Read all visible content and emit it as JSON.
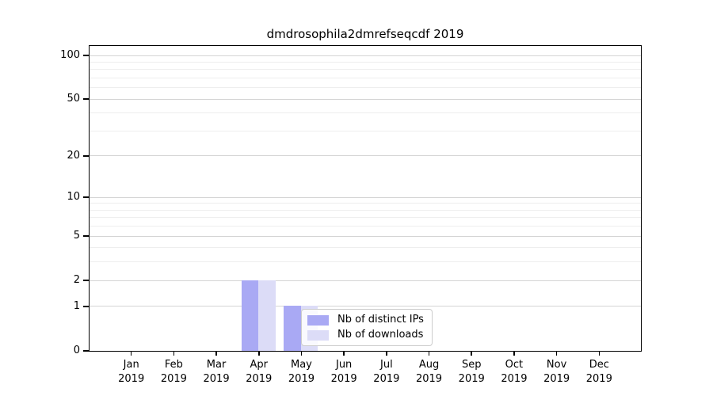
{
  "title": "dmdrosophila2dmrefseqcdf 2019",
  "chart_data": {
    "type": "bar",
    "title": "dmdrosophila2dmrefseqcdf 2019",
    "scale": "log1p",
    "grid": true,
    "categories": [
      "Jan",
      "Feb",
      "Mar",
      "Apr",
      "May",
      "Jun",
      "Jul",
      "Aug",
      "Sep",
      "Oct",
      "Nov",
      "Dec"
    ],
    "year_label": "2019",
    "series": [
      {
        "name": "Nb of distinct IPs",
        "color": "#a9a9f4",
        "values": [
          0,
          0,
          0,
          2,
          1,
          0,
          0,
          0,
          0,
          0,
          0,
          0
        ]
      },
      {
        "name": "Nb of downloads",
        "color": "#dcdcf7",
        "values": [
          0,
          0,
          0,
          2,
          1,
          0,
          0,
          0,
          0,
          0,
          0,
          0
        ]
      }
    ],
    "y_ticks": [
      0,
      1,
      2,
      5,
      10,
      20,
      50,
      100
    ],
    "y_minor_gridlines": [
      3,
      4,
      6,
      7,
      8,
      9,
      30,
      40,
      60,
      70,
      80,
      90
    ],
    "ylim": [
      0,
      117
    ],
    "xlabel": "",
    "ylabel": "",
    "legend_position": "bottom-center"
  },
  "colors": {
    "major_grid": "#d4d4d4",
    "minor_grid": "#eeeeee",
    "axis": "#000000",
    "legend_border": "#cccccc",
    "background": "#ffffff"
  }
}
